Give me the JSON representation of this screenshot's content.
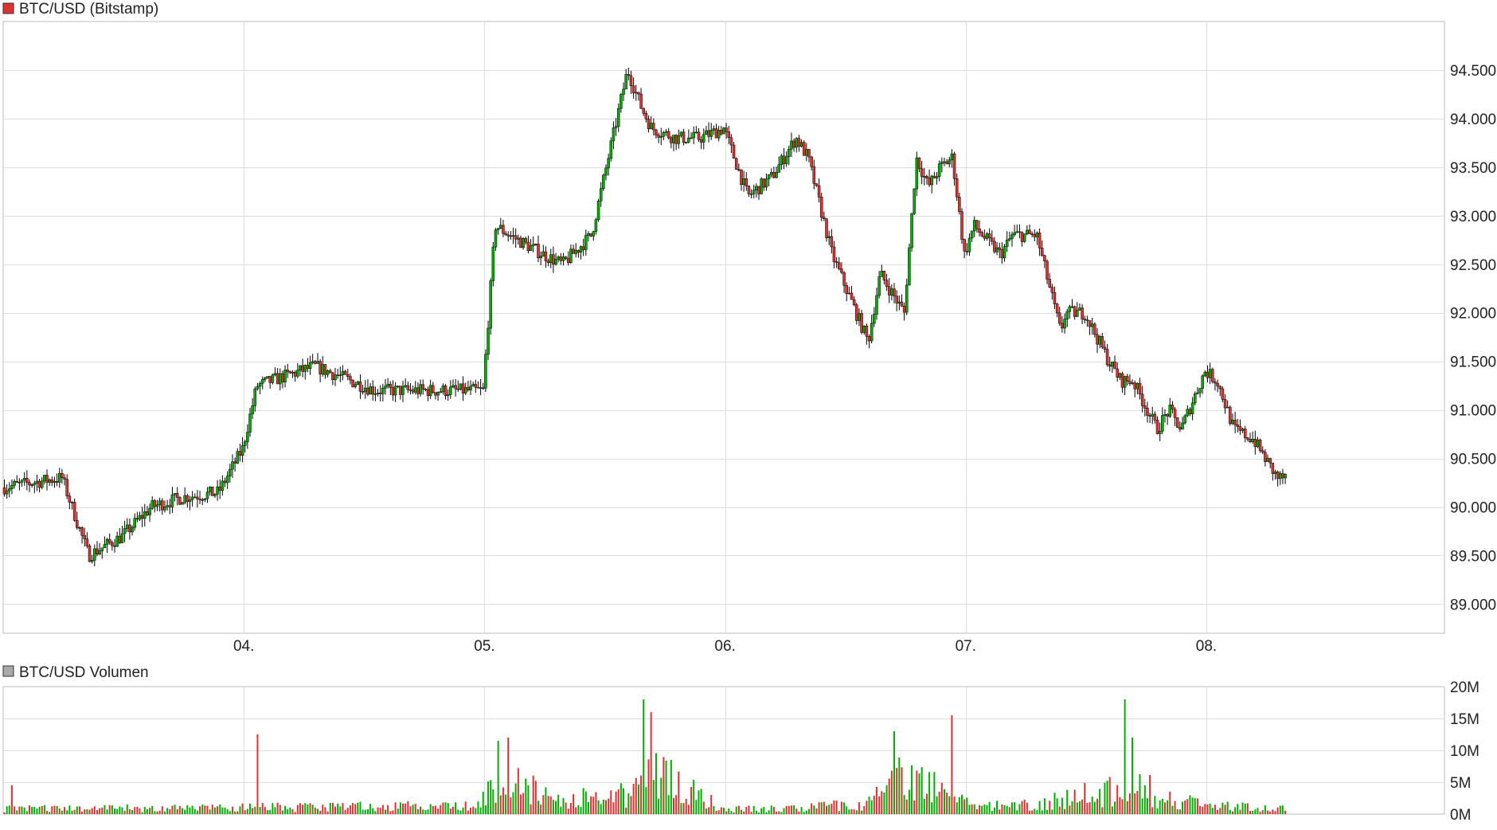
{
  "colors": {
    "up": "#00b000",
    "down": "#e03030",
    "wick": "#000000",
    "grid": "#dddddd",
    "frame": "#bbbbbb",
    "price_legend_swatch": "#e03030",
    "volume_legend_swatch": "#aaaaaa"
  },
  "chart_data": [
    {
      "type": "candlestick",
      "title": "BTC/USD (Bitstamp)",
      "x_tick_labels": [
        "04.",
        "05.",
        "06.",
        "07.",
        "08."
      ],
      "x_tick_day_index": [
        1,
        2,
        3,
        4,
        5
      ],
      "x_range_days": [
        0,
        6.0
      ],
      "y_tick_labels": [
        "89.000",
        "89.500",
        "90.000",
        "90.500",
        "91.000",
        "91.500",
        "92.000",
        "92.500",
        "93.000",
        "93.500",
        "94.000",
        "94.500"
      ],
      "y_tick_values": [
        89000,
        89500,
        90000,
        90500,
        91000,
        91500,
        92000,
        92500,
        93000,
        93500,
        94000,
        94500
      ],
      "ylim": [
        88700,
        95000
      ],
      "grid": true,
      "price_path_days": [
        0,
        0.25,
        0.36,
        0.5,
        0.62,
        0.75,
        0.9,
        1.0,
        1.06,
        1.3,
        1.55,
        1.84,
        2.0,
        2.05,
        2.11,
        2.25,
        2.33,
        2.45,
        2.6,
        2.66,
        2.7,
        2.8,
        2.9,
        3.0,
        3.1,
        3.2,
        3.3,
        3.35,
        3.45,
        3.6,
        3.65,
        3.75,
        3.8,
        3.85,
        3.9,
        3.95,
        4.0,
        4.04,
        4.11,
        4.15,
        4.2,
        4.3,
        4.4,
        4.42,
        4.5,
        4.6,
        4.65,
        4.7,
        4.8,
        4.85,
        4.9,
        4.95,
        5.0,
        5.05,
        5.12,
        5.2,
        5.3,
        5.33
      ],
      "price_path_values": [
        90200,
        90300,
        89500,
        89700,
        90000,
        90100,
        90150,
        90600,
        91250,
        91450,
        91200,
        91200,
        91200,
        92900,
        92800,
        92600,
        92500,
        92800,
        94500,
        94100,
        93900,
        93800,
        93800,
        93900,
        93200,
        93400,
        93800,
        93600,
        92600,
        91700,
        92400,
        92000,
        93600,
        93300,
        93500,
        93600,
        92600,
        92900,
        92700,
        92600,
        92800,
        92800,
        91800,
        92000,
        92000,
        91500,
        91300,
        91300,
        90800,
        91000,
        90800,
        91100,
        91400,
        91300,
        90800,
        90700,
        90300,
        90300
      ]
    },
    {
      "type": "bar",
      "title": "BTC/USD Volumen",
      "y_tick_labels": [
        "0M",
        "5M",
        "10M",
        "15M",
        "20M"
      ],
      "y_tick_values": [
        0,
        5,
        10,
        15,
        20
      ],
      "ylim": [
        0,
        20
      ],
      "unit": "M",
      "volume_path_days": [
        0,
        1.0,
        1.9,
        2.0,
        2.1,
        2.3,
        2.6,
        2.7,
        2.9,
        3.0,
        3.3,
        3.6,
        3.7,
        3.9,
        3.95,
        4.1,
        4.4,
        4.6,
        4.7,
        4.8,
        5.0,
        5.33
      ],
      "volume_path_values": [
        1.0,
        1.2,
        1.5,
        3.5,
        6.0,
        2.5,
        3.5,
        8.0,
        3.0,
        1.0,
        1.0,
        2.0,
        6.5,
        5.0,
        2.5,
        1.5,
        2.5,
        4.5,
        6.5,
        3.0,
        1.5,
        1.0
      ],
      "volume_peaks_days": [
        0.03,
        1.05,
        2.05,
        2.09,
        2.66,
        2.69,
        3.7,
        3.94,
        4.66,
        4.69
      ],
      "volume_peaks_values": [
        4.5,
        12.5,
        11.5,
        12.0,
        18.0,
        16.0,
        13.0,
        15.5,
        18.0,
        12.0
      ]
    }
  ]
}
